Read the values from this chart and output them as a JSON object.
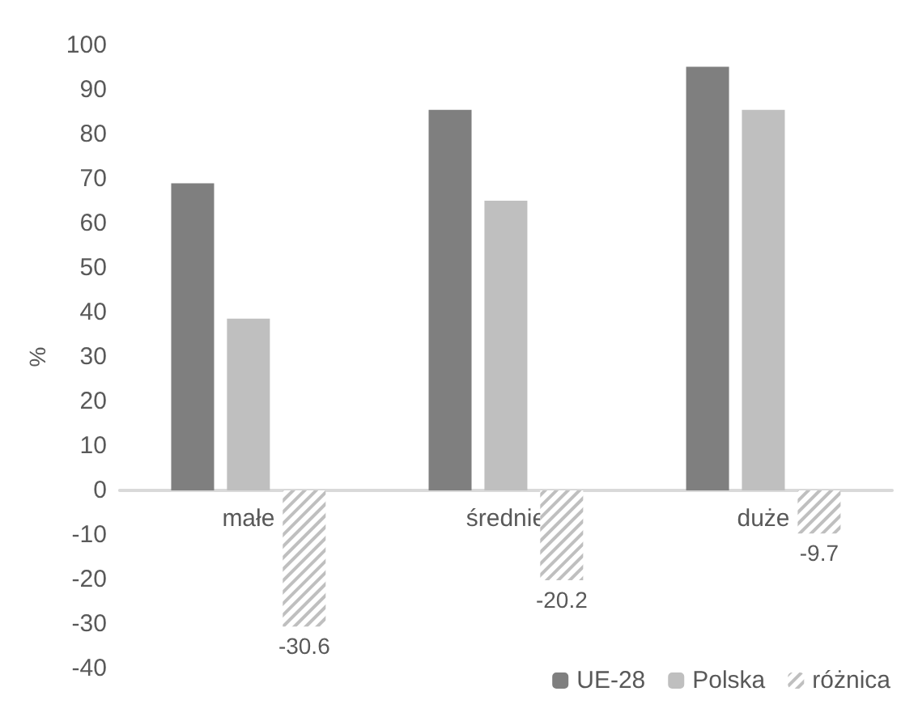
{
  "chart_data": {
    "type": "bar",
    "ylabel": "%",
    "categories": [
      "małe",
      "średnie",
      "duże"
    ],
    "series": [
      {
        "name": "UE-28",
        "color": "#7f7f7f",
        "values": [
          69.0,
          85.5,
          95.2
        ]
      },
      {
        "name": "Polska",
        "color": "#bfbfbf",
        "values": [
          38.6,
          65.1,
          85.5
        ]
      },
      {
        "name": "różnica",
        "color": "#bfbfbf",
        "values": [
          -30.6,
          -20.2,
          -9.7
        ],
        "value_labels": [
          "-30.6",
          "-20.2",
          "-9.7"
        ]
      }
    ],
    "ylim": [
      -40,
      100
    ],
    "yticks": [
      -40,
      -30,
      -20,
      -10,
      0,
      10,
      20,
      30,
      40,
      50,
      60,
      70,
      80,
      90,
      100
    ],
    "legend": "bottom right"
  }
}
